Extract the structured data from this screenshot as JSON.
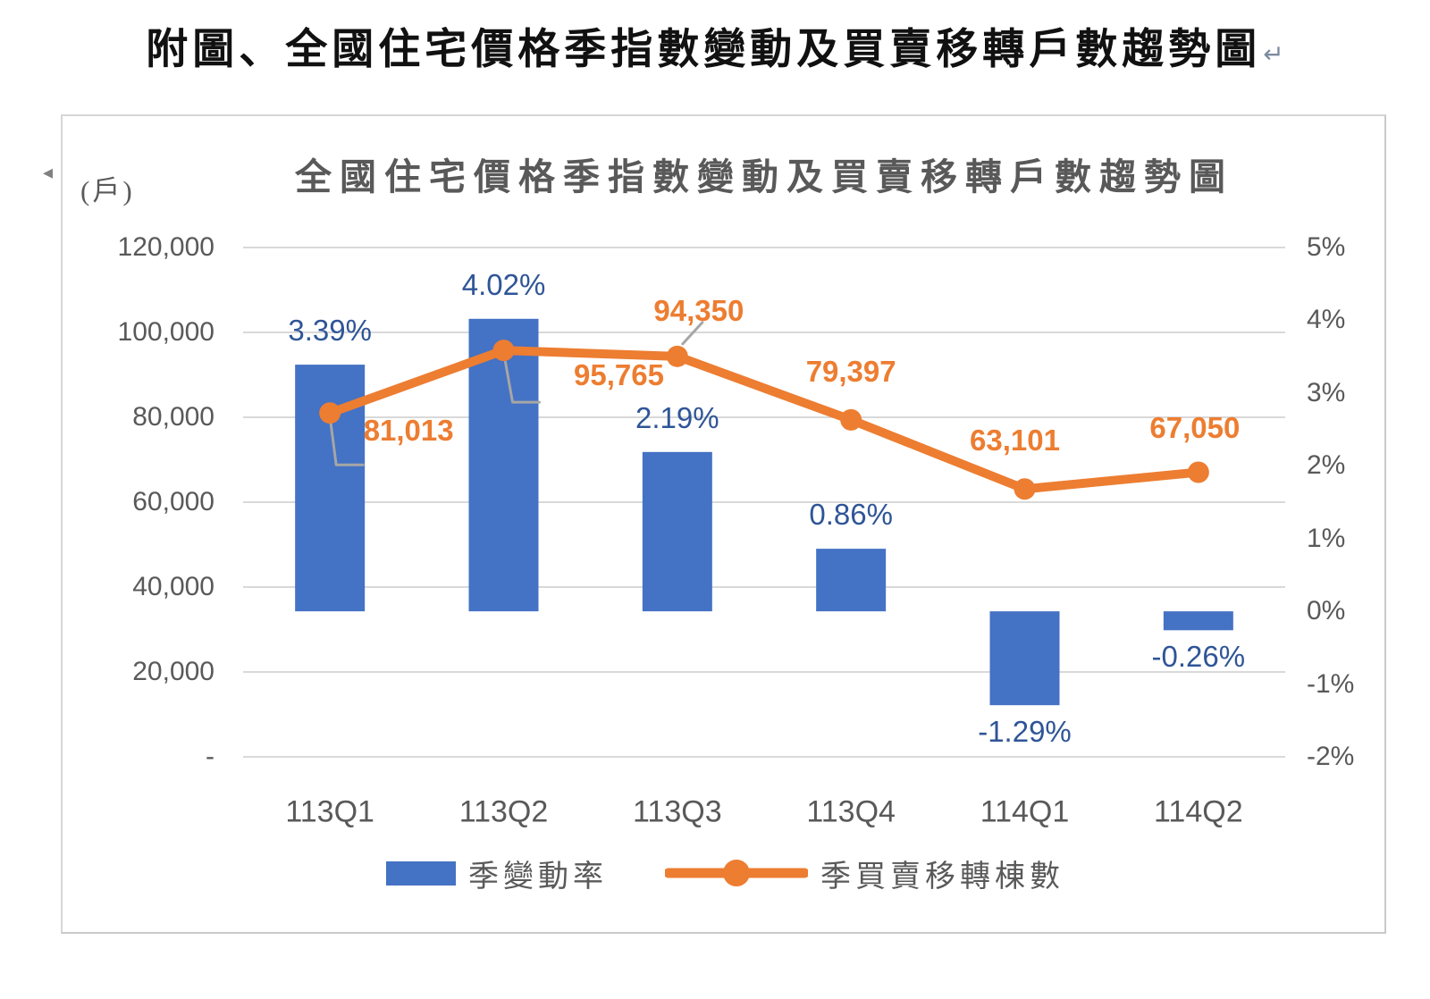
{
  "document": {
    "title": "附圖、全國住宅價格季指數變動及買賣移轉戶數趨勢圖",
    "return_mark": "↵"
  },
  "icons": {
    "object_anchor": "◂"
  },
  "chart": {
    "title": "全國住宅價格季指數變動及買賣移轉戶數趨勢圖",
    "left_axis_unit": "(戶)"
  },
  "chart_data": {
    "type": "combo-bar-line",
    "title": "全國住宅價格季指數變動及買賣移轉戶數趨勢圖",
    "categories": [
      "113Q1",
      "113Q2",
      "113Q3",
      "113Q4",
      "114Q1",
      "114Q2"
    ],
    "series": [
      {
        "name": "季變動率",
        "type": "bar",
        "axis": "right",
        "color": "#4472C4",
        "label_color": "#2F5597",
        "values": [
          3.39,
          4.02,
          2.19,
          0.86,
          -1.29,
          -0.26
        ],
        "labels": [
          "3.39%",
          "4.02%",
          "2.19%",
          "0.86%",
          "-1.29%",
          "-0.26%"
        ]
      },
      {
        "name": "季買賣移轉棟數",
        "type": "line",
        "axis": "left",
        "color": "#ED7D31",
        "label_color": "#ED7D31",
        "values": [
          81013,
          95765,
          94350,
          79397,
          63101,
          67050
        ],
        "labels": [
          "81,013",
          "95,765",
          "94,350",
          "79,397",
          "63,101",
          "67,050"
        ]
      }
    ],
    "left_axis": {
      "unit": "(戶)",
      "min": 0,
      "max": 120000,
      "step": 20000,
      "tick_labels_top_to_bottom": [
        "120,000",
        "100,000",
        "80,000",
        "60,000",
        "40,000",
        "20,000",
        "-"
      ]
    },
    "right_axis": {
      "min": -2,
      "max": 5,
      "step": 1,
      "tick_labels_top_to_bottom": [
        "5%",
        "4%",
        "3%",
        "2%",
        "1%",
        "0%",
        "-1%",
        "-2%"
      ]
    },
    "grid": true,
    "gridline_color": "#D9D9D9",
    "axis_text_color": "#595959",
    "leader_line_color": "#A6A6A6",
    "legend_position": "bottom"
  }
}
